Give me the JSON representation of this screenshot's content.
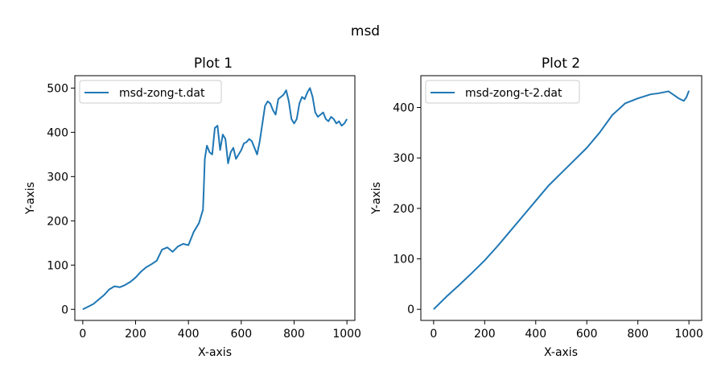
{
  "figure": {
    "suptitle": "msd"
  },
  "chart_data": [
    {
      "type": "line",
      "title": "Plot 1",
      "xlabel": "X-axis",
      "ylabel": "Y-axis",
      "xlim": [
        -30,
        1030
      ],
      "ylim": [
        -25,
        528
      ],
      "xticks": [
        0,
        200,
        400,
        600,
        800,
        1000
      ],
      "yticks": [
        0,
        100,
        200,
        300,
        400,
        500
      ],
      "xtick_labels": [
        "0",
        "200",
        "400",
        "600",
        "800",
        "1000"
      ],
      "ytick_labels": [
        "0",
        "100",
        "200",
        "300",
        "400",
        "500"
      ],
      "color": "#1f77b4",
      "legend": "top-left",
      "series": [
        {
          "name": "msd-zong-t.dat",
          "x": [
            0,
            20,
            40,
            60,
            80,
            100,
            120,
            140,
            160,
            180,
            200,
            220,
            240,
            260,
            280,
            300,
            320,
            340,
            360,
            380,
            400,
            420,
            440,
            455,
            458,
            462,
            470,
            480,
            490,
            500,
            510,
            520,
            530,
            540,
            550,
            560,
            570,
            580,
            590,
            600,
            610,
            620,
            630,
            640,
            650,
            660,
            670,
            680,
            690,
            700,
            710,
            720,
            730,
            740,
            750,
            760,
            770,
            780,
            790,
            800,
            810,
            820,
            830,
            840,
            850,
            860,
            870,
            880,
            890,
            900,
            910,
            920,
            930,
            940,
            950,
            960,
            970,
            980,
            990,
            1000
          ],
          "y": [
            0,
            6,
            12,
            22,
            32,
            45,
            52,
            50,
            55,
            62,
            72,
            85,
            95,
            102,
            110,
            135,
            140,
            130,
            142,
            148,
            145,
            175,
            195,
            225,
            270,
            340,
            370,
            355,
            350,
            410,
            415,
            360,
            395,
            385,
            330,
            355,
            365,
            340,
            350,
            360,
            375,
            378,
            385,
            380,
            365,
            350,
            380,
            420,
            460,
            470,
            465,
            450,
            440,
            475,
            480,
            485,
            495,
            470,
            430,
            420,
            430,
            465,
            480,
            475,
            490,
            500,
            480,
            445,
            435,
            440,
            445,
            430,
            425,
            435,
            430,
            420,
            425,
            415,
            420,
            430
          ]
        }
      ]
    },
    {
      "type": "line",
      "title": "Plot 2",
      "xlabel": "X-axis",
      "ylabel": "Y-axis",
      "xlim": [
        -50,
        1050
      ],
      "ylim": [
        -22,
        463
      ],
      "xticks": [
        0,
        200,
        400,
        600,
        800,
        1000
      ],
      "yticks": [
        0,
        100,
        200,
        300,
        400
      ],
      "xtick_labels": [
        "0",
        "200",
        "400",
        "600",
        "800",
        "1000"
      ],
      "ytick_labels": [
        "0",
        "100",
        "200",
        "300",
        "400"
      ],
      "color": "#1f77b4",
      "legend": "top-left",
      "series": [
        {
          "name": "msd-zong-t-2.dat",
          "x": [
            0,
            50,
            100,
            150,
            200,
            250,
            300,
            350,
            400,
            450,
            500,
            550,
            600,
            650,
            700,
            750,
            800,
            850,
            880,
            900,
            920,
            940,
            960,
            980,
            990,
            1000
          ],
          "y": [
            0,
            25,
            48,
            72,
            97,
            125,
            155,
            185,
            215,
            245,
            270,
            295,
            320,
            350,
            385,
            408,
            418,
            426,
            428,
            430,
            432,
            425,
            418,
            413,
            420,
            433
          ]
        }
      ]
    }
  ]
}
